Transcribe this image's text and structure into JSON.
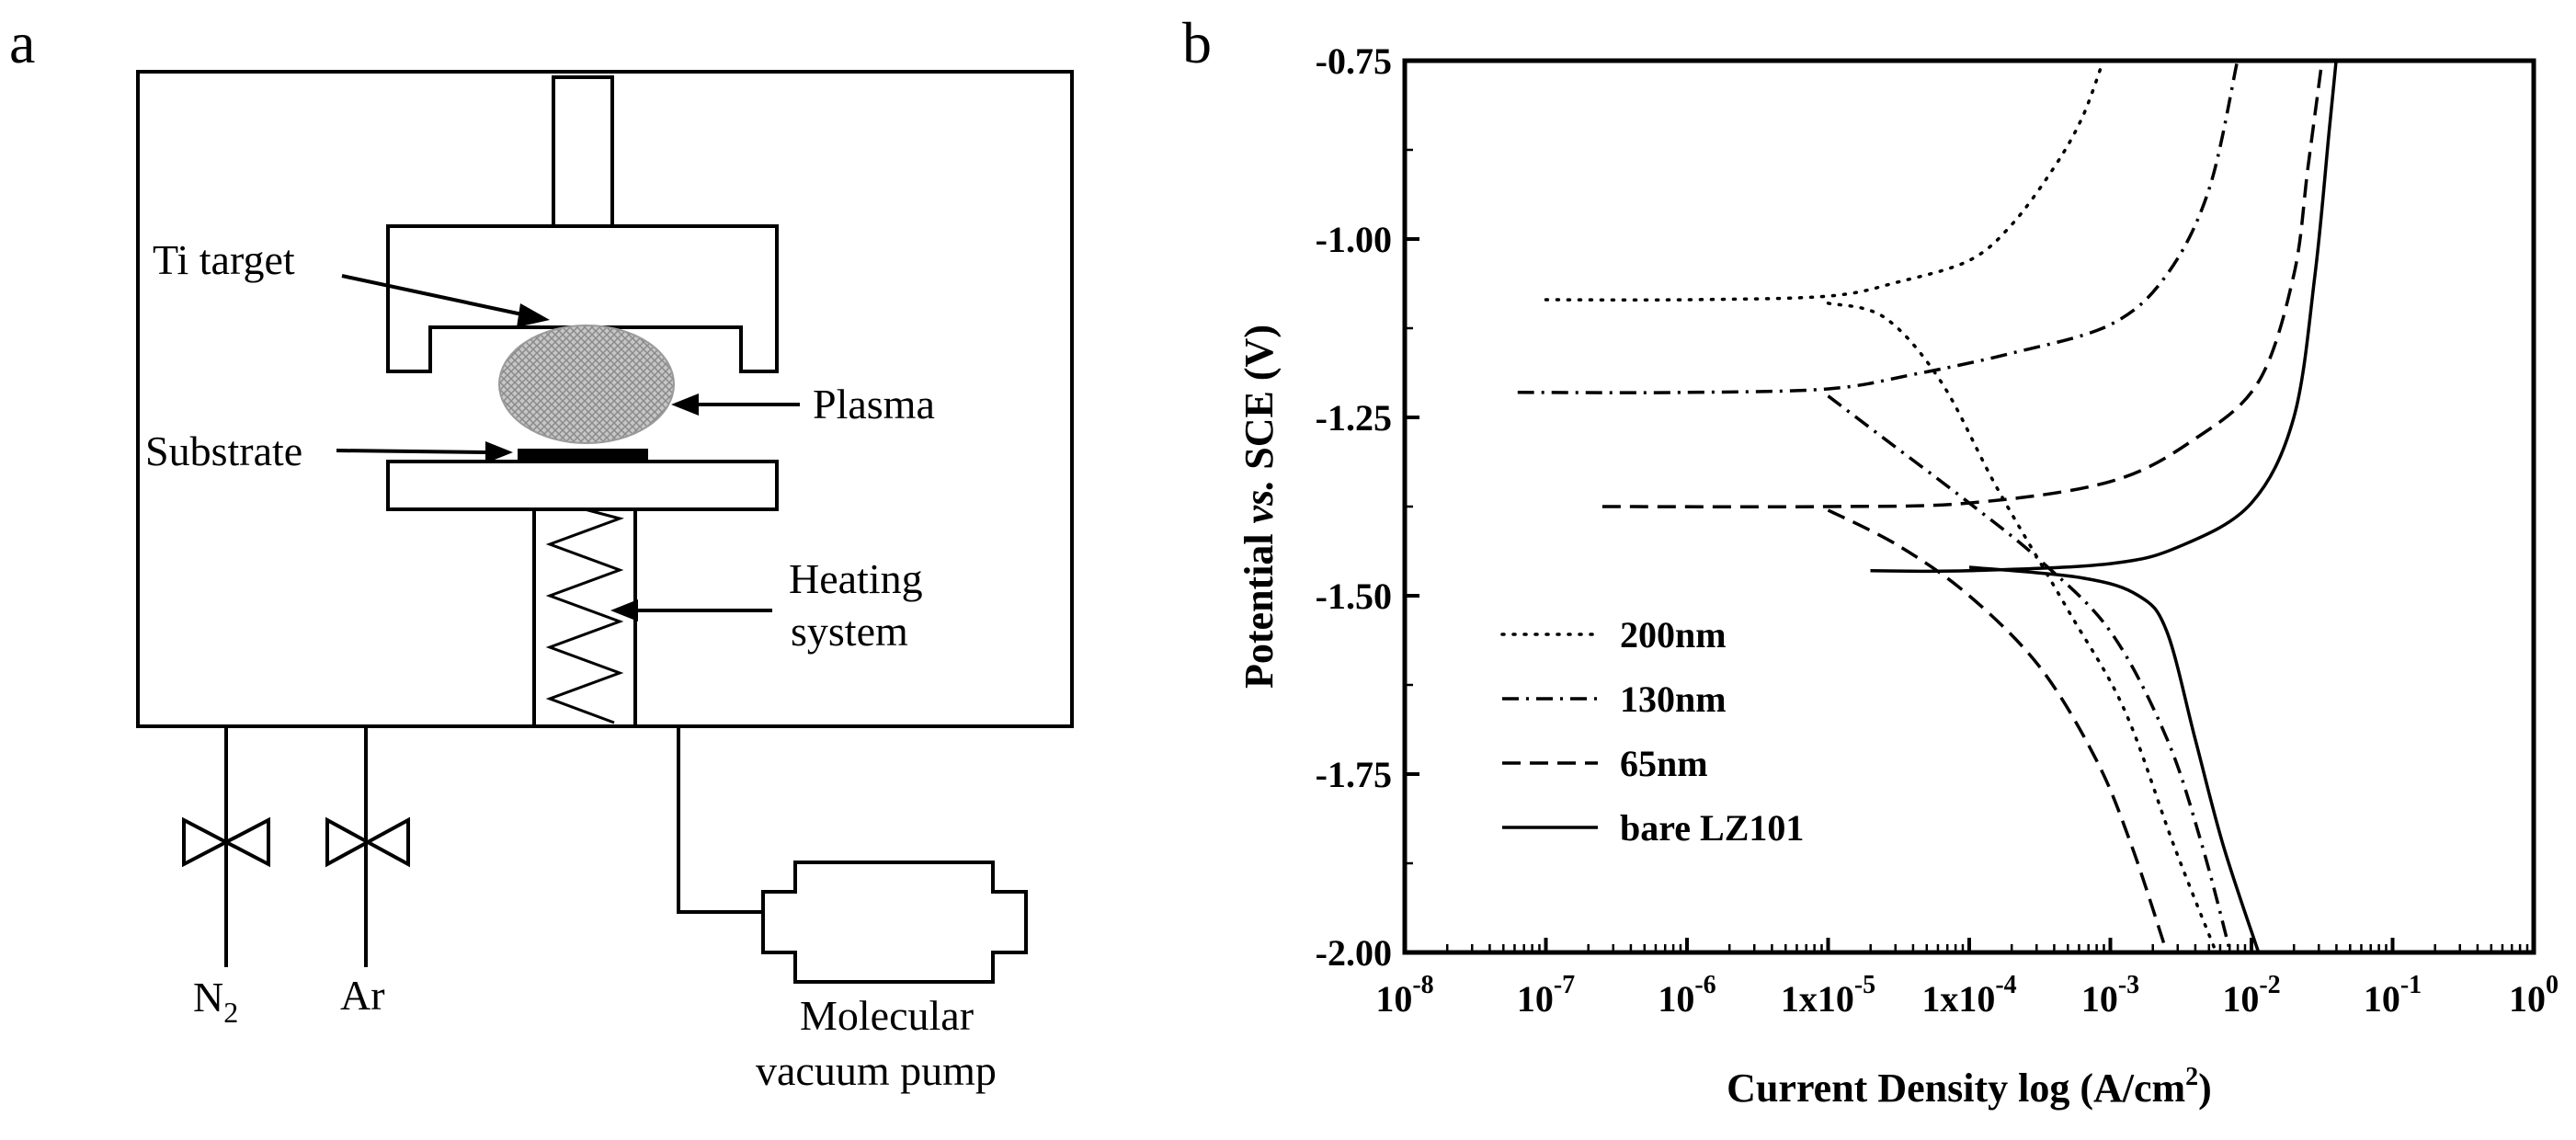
{
  "panel_a": {
    "letter": "a",
    "labels": {
      "target": "Ti target",
      "plasma": "Plasma",
      "substrate": "Substrate",
      "heating_line1": "Heating",
      "heating_line2": "system",
      "n2_base": "N",
      "n2_sub": "2",
      "ar": "Ar",
      "pump_line1": "Molecular",
      "pump_line2": "vacuum pump"
    }
  },
  "panel_b": {
    "letter": "b",
    "ylabel_parts": [
      "Potential ",
      "vs.",
      " SCE (V)"
    ],
    "xlabel_parts": [
      "Current Density log (A/cm",
      "2",
      ")"
    ],
    "xtick_labels": [
      {
        "base": "10",
        "exp": "-8"
      },
      {
        "base": "10",
        "exp": "-7"
      },
      {
        "base": "10",
        "exp": "-6"
      },
      {
        "base": "1x10",
        "exp": "-5"
      },
      {
        "base": "1x10",
        "exp": "-4"
      },
      {
        "base": "10",
        "exp": "-3"
      },
      {
        "base": "10",
        "exp": "-2"
      },
      {
        "base": "10",
        "exp": "-1"
      },
      {
        "base": "10",
        "exp": "0"
      }
    ],
    "ytick_labels": [
      "-0.75",
      "-1.00",
      "-1.25",
      "-1.50",
      "-1.75",
      "-2.00"
    ]
  },
  "chart_data": {
    "type": "line",
    "title": "",
    "xlabel": "Current Density log (A/cm2)",
    "ylabel": "Potential vs. SCE (V)",
    "xscale": "log",
    "xlim_log10": [
      -8,
      0
    ],
    "ylim": [
      -2.0,
      -0.75
    ],
    "yticks": [
      -0.75,
      -1.0,
      -1.25,
      -1.5,
      -1.75,
      -2.0
    ],
    "legend_position": "bottom-left",
    "series": [
      {
        "name": "200nm",
        "dash": "dotted",
        "anodic": [
          [
            -7.0,
            -1.085
          ],
          [
            -6.0,
            -1.085
          ],
          [
            -5.0,
            -1.08
          ],
          [
            -4.5,
            -1.06
          ],
          [
            -4.0,
            -1.03
          ],
          [
            -3.7,
            -0.98
          ],
          [
            -3.4,
            -0.9
          ],
          [
            -3.2,
            -0.83
          ],
          [
            -3.05,
            -0.75
          ]
        ],
        "cathodic": [
          [
            -5.0,
            -1.09
          ],
          [
            -4.6,
            -1.11
          ],
          [
            -4.2,
            -1.2
          ],
          [
            -3.8,
            -1.35
          ],
          [
            -3.3,
            -1.52
          ],
          [
            -2.9,
            -1.66
          ],
          [
            -2.55,
            -1.85
          ],
          [
            -2.25,
            -2.0
          ]
        ]
      },
      {
        "name": "130nm",
        "dash": "dash-dot",
        "anodic": [
          [
            -7.2,
            -1.215
          ],
          [
            -6.0,
            -1.215
          ],
          [
            -5.0,
            -1.21
          ],
          [
            -4.4,
            -1.19
          ],
          [
            -3.7,
            -1.16
          ],
          [
            -3.0,
            -1.12
          ],
          [
            -2.6,
            -1.05
          ],
          [
            -2.3,
            -0.93
          ],
          [
            -2.1,
            -0.75
          ]
        ],
        "cathodic": [
          [
            -5.0,
            -1.22
          ],
          [
            -4.6,
            -1.28
          ],
          [
            -4.0,
            -1.37
          ],
          [
            -3.5,
            -1.45
          ],
          [
            -3.0,
            -1.55
          ],
          [
            -2.6,
            -1.7
          ],
          [
            -2.35,
            -1.85
          ],
          [
            -2.15,
            -2.0
          ]
        ]
      },
      {
        "name": "65nm",
        "dash": "dashed",
        "anodic": [
          [
            -6.6,
            -1.375
          ],
          [
            -5.0,
            -1.375
          ],
          [
            -4.0,
            -1.37
          ],
          [
            -3.0,
            -1.34
          ],
          [
            -2.4,
            -1.28
          ],
          [
            -1.95,
            -1.2
          ],
          [
            -1.7,
            -1.05
          ],
          [
            -1.6,
            -0.9
          ],
          [
            -1.5,
            -0.75
          ]
        ],
        "cathodic": [
          [
            -5.0,
            -1.38
          ],
          [
            -4.5,
            -1.43
          ],
          [
            -4.0,
            -1.5
          ],
          [
            -3.5,
            -1.6
          ],
          [
            -3.1,
            -1.73
          ],
          [
            -2.85,
            -1.85
          ],
          [
            -2.6,
            -2.0
          ]
        ]
      },
      {
        "name": "bare LZ101",
        "dash": "solid",
        "anodic": [
          [
            -4.7,
            -1.465
          ],
          [
            -4.0,
            -1.465
          ],
          [
            -3.0,
            -1.455
          ],
          [
            -2.5,
            -1.43
          ],
          [
            -2.0,
            -1.37
          ],
          [
            -1.7,
            -1.25
          ],
          [
            -1.55,
            -1.05
          ],
          [
            -1.45,
            -0.85
          ],
          [
            -1.4,
            -0.75
          ]
        ],
        "cathodic": [
          [
            -4.0,
            -1.46
          ],
          [
            -3.2,
            -1.475
          ],
          [
            -2.8,
            -1.5
          ],
          [
            -2.6,
            -1.55
          ],
          [
            -2.4,
            -1.7
          ],
          [
            -2.2,
            -1.85
          ],
          [
            -1.95,
            -2.0
          ]
        ]
      }
    ]
  }
}
